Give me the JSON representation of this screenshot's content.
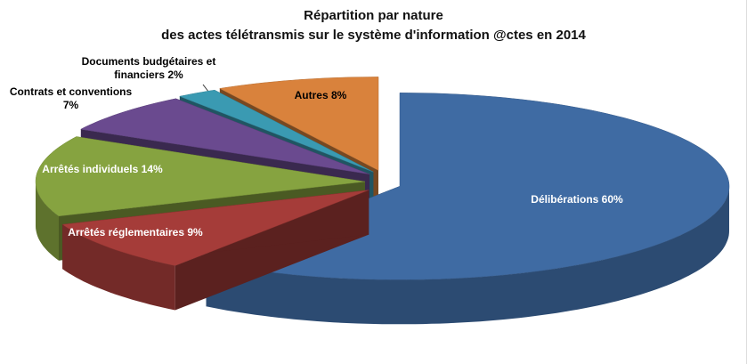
{
  "chart_data": {
    "type": "pie",
    "title": "Répartition par nature",
    "subtitle": "des actes télétransmis sur le système d'information @ctes en 2014",
    "categories": [
      "Délibérations",
      "Arrêtés réglementaires",
      "Arrêtés individuels",
      "Contrats et conventions",
      "Documents budgétaires et financiers",
      "Autres"
    ],
    "values": [
      60,
      9,
      14,
      7,
      2,
      8
    ],
    "value_labels": [
      "60%",
      "9%",
      "14%",
      "7%",
      "2%",
      "8%"
    ],
    "colors": [
      "#3f6ba3",
      "#a53c39",
      "#86a340",
      "#6a4a8f",
      "#3a9ab2",
      "#d9823c"
    ]
  }
}
